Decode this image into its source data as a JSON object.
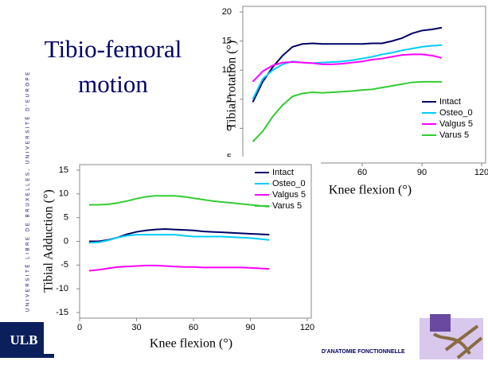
{
  "slide": {
    "title": "Tibio-femoral motion",
    "university": "UNIVERSITÉ LIBRE DE BRUXELLES, UNIVERSITÉ D'EUROPE",
    "logo": "ULB",
    "lab": "LABORATOIRE D'ANATOMIE FONCTIONNELLE"
  },
  "chart_data": [
    {
      "type": "line",
      "y_label": "Tibial rotation (°)",
      "x_label": "Knee flexion (°)",
      "x": [
        5,
        10,
        15,
        20,
        25,
        30,
        35,
        40,
        45,
        50,
        55,
        60,
        65,
        70,
        75,
        80,
        85,
        90,
        95,
        100
      ],
      "xlim": [
        0,
        120
      ],
      "xticks": [
        0,
        30,
        60,
        90,
        120
      ],
      "ylim": [
        -5,
        20
      ],
      "yticks": [
        -5,
        0,
        5,
        10,
        15,
        20
      ],
      "series": [
        {
          "name": "Intact",
          "color": "#000066",
          "values": [
            4.5,
            8,
            10.5,
            12.5,
            14,
            14.5,
            14.6,
            14.5,
            14.5,
            14.5,
            14.5,
            14.5,
            14.6,
            14.6,
            15,
            15.5,
            16.3,
            16.8,
            17,
            17.3
          ]
        },
        {
          "name": "Osteo_0",
          "color": "#00ccff",
          "values": [
            5,
            8.5,
            10,
            11,
            11.5,
            11.3,
            11.2,
            11.3,
            11.4,
            11.5,
            11.7,
            12,
            12.3,
            12.7,
            13,
            13.4,
            13.7,
            14,
            14.2,
            14.3
          ]
        },
        {
          "name": "Valgus 5",
          "color": "#ff00ff",
          "values": [
            8,
            9.8,
            10.8,
            11.3,
            11.4,
            11.3,
            11.2,
            11,
            11,
            11.1,
            11.3,
            11.5,
            11.8,
            12,
            12.3,
            12.6,
            12.7,
            12.7,
            12.5,
            12.1
          ]
        },
        {
          "name": "Varus 5",
          "color": "#33cc33",
          "values": [
            -2.3,
            -0.5,
            2,
            4,
            5.5,
            6,
            6.2,
            6.1,
            6.2,
            6.3,
            6.4,
            6.6,
            6.7,
            7,
            7.3,
            7.6,
            7.9,
            8,
            8,
            8
          ]
        }
      ]
    },
    {
      "type": "line",
      "y_label": "Tibial Adduction (°)",
      "x_label": "Knee flexion (°)",
      "x": [
        5,
        10,
        15,
        20,
        25,
        30,
        35,
        40,
        45,
        50,
        55,
        60,
        65,
        70,
        75,
        80,
        85,
        90,
        95,
        100
      ],
      "xlim": [
        0,
        120
      ],
      "xticks": [
        0,
        30,
        60,
        90,
        120
      ],
      "ylim": [
        -15,
        15
      ],
      "yticks": [
        -15,
        -10,
        -5,
        0,
        5,
        10,
        15
      ],
      "series": [
        {
          "name": "Intact",
          "color": "#000066",
          "values": [
            0,
            0,
            0.3,
            0.8,
            1.5,
            2,
            2.3,
            2.5,
            2.6,
            2.5,
            2.4,
            2.3,
            2.1,
            2,
            1.9,
            1.8,
            1.7,
            1.6,
            1.5,
            1.4
          ]
        },
        {
          "name": "Osteo_0",
          "color": "#00ccff",
          "values": [
            -0.3,
            -0.2,
            0.2,
            0.8,
            1.2,
            1.4,
            1.4,
            1.4,
            1.4,
            1.4,
            1.2,
            1,
            1,
            1,
            1,
            0.9,
            0.8,
            0.7,
            0.5,
            0.3
          ]
        },
        {
          "name": "Valgus 5",
          "color": "#ff00ff",
          "values": [
            -6.2,
            -6,
            -5.7,
            -5.4,
            -5.3,
            -5.2,
            -5.1,
            -5.1,
            -5.2,
            -5.3,
            -5.4,
            -5.4,
            -5.5,
            -5.5,
            -5.5,
            -5.5,
            -5.5,
            -5.6,
            -5.7,
            -5.8
          ]
        },
        {
          "name": "Varus 5",
          "color": "#33cc33",
          "values": [
            7.7,
            7.7,
            7.8,
            8.1,
            8.5,
            9,
            9.4,
            9.6,
            9.6,
            9.6,
            9.4,
            9.1,
            8.8,
            8.5,
            8.3,
            8.1,
            7.9,
            7.7,
            7.5,
            7.3
          ]
        }
      ]
    }
  ]
}
